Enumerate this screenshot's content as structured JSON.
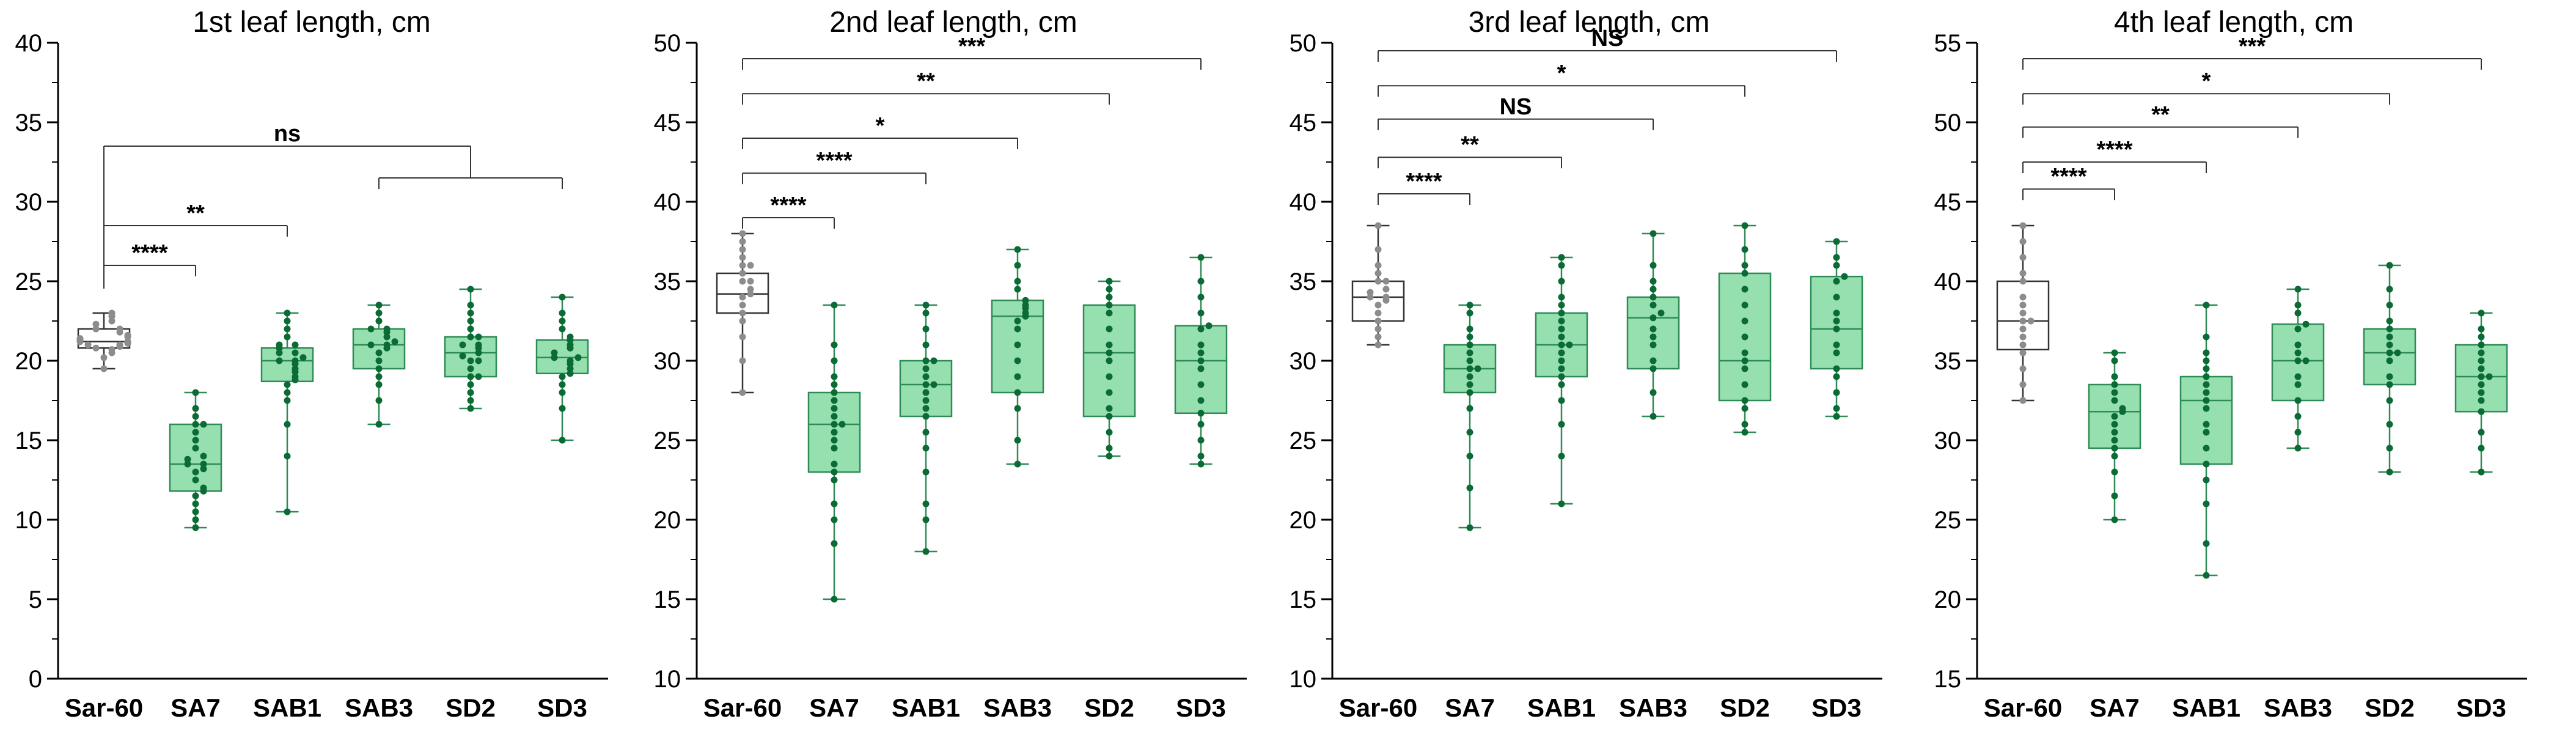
{
  "colors": {
    "control_box": "#ffffff",
    "control_edge": "#333333",
    "control_point": "#8c8c8c",
    "treat_box": "#96e0b0",
    "treat_edge": "#2e8b57",
    "treat_point": "#0b6b35",
    "axis": "#000000"
  },
  "chart_data": [
    {
      "type": "box",
      "title": "1st leaf length, cm",
      "categories": [
        "Sar-60",
        "SA7",
        "SAB1",
        "SAB3",
        "SD2",
        "SD3"
      ],
      "ylim": [
        0,
        40
      ],
      "yticks": [
        0,
        5,
        10,
        15,
        20,
        25,
        30,
        35,
        40
      ],
      "boxes": [
        {
          "min": 19.5,
          "q1": 20.8,
          "median": 21.2,
          "q3": 22.0,
          "max": 23.0,
          "points": [
            19.5,
            20.2,
            20.5,
            20.7,
            20.8,
            20.9,
            21.0,
            21.0,
            21.1,
            21.2,
            21.2,
            21.3,
            21.4,
            21.5,
            21.6,
            21.8,
            22.0,
            22.0,
            22.3,
            22.5,
            22.8,
            23.0
          ]
        },
        {
          "min": 9.5,
          "q1": 11.8,
          "median": 13.5,
          "q3": 16.0,
          "max": 18.0,
          "points": [
            9.5,
            10.0,
            10.5,
            11.0,
            11.5,
            11.8,
            12.0,
            12.5,
            13.0,
            13.2,
            13.5,
            13.5,
            13.8,
            14.0,
            14.5,
            15.0,
            15.5,
            16.0,
            16.0,
            16.5,
            17.0,
            18.0
          ]
        },
        {
          "min": 10.5,
          "q1": 18.7,
          "median": 20.0,
          "q3": 20.8,
          "max": 23.0,
          "points": [
            10.5,
            14.0,
            16.0,
            17.5,
            18.0,
            18.5,
            18.8,
            19.0,
            19.3,
            19.5,
            19.8,
            20.0,
            20.0,
            20.2,
            20.5,
            20.5,
            20.8,
            21.0,
            21.0,
            21.5,
            22.0,
            22.5,
            23.0
          ]
        },
        {
          "min": 16.0,
          "q1": 19.5,
          "median": 21.0,
          "q3": 22.0,
          "max": 23.5,
          "points": [
            16.0,
            17.5,
            18.5,
            19.0,
            19.5,
            20.0,
            20.5,
            20.8,
            21.0,
            21.0,
            21.2,
            21.5,
            21.8,
            22.0,
            22.0,
            22.5,
            23.0,
            23.5
          ]
        },
        {
          "min": 17.0,
          "q1": 19.0,
          "median": 20.5,
          "q3": 21.5,
          "max": 24.5,
          "points": [
            17.0,
            17.5,
            18.0,
            18.5,
            19.0,
            19.0,
            19.5,
            20.0,
            20.0,
            20.3,
            20.5,
            20.8,
            21.0,
            21.0,
            21.5,
            21.5,
            22.0,
            22.5,
            23.0,
            23.5,
            24.5
          ]
        },
        {
          "min": 15.0,
          "q1": 19.2,
          "median": 20.2,
          "q3": 21.3,
          "max": 24.0,
          "points": [
            15.0,
            17.0,
            18.0,
            18.5,
            19.0,
            19.2,
            19.5,
            19.8,
            20.0,
            20.2,
            20.2,
            20.5,
            20.8,
            21.0,
            21.3,
            21.5,
            22.0,
            22.5,
            23.0,
            24.0
          ]
        }
      ],
      "brackets": [
        {
          "from": 0,
          "to": 1,
          "y": 26.0,
          "label": "****"
        },
        {
          "from": 0,
          "to": 2,
          "y": 28.5,
          "label": "**"
        },
        {
          "from": 0,
          "to": 3.5,
          "y": 33.5,
          "label": "ns",
          "bold": false,
          "group": [
            3,
            5
          ],
          "group_y": 31.5
        }
      ]
    },
    {
      "type": "box",
      "title": "2nd leaf length, cm",
      "categories": [
        "Sar-60",
        "SA7",
        "SAB1",
        "SAB3",
        "SD2",
        "SD3"
      ],
      "ylim": [
        10,
        50
      ],
      "yticks": [
        10,
        15,
        20,
        25,
        30,
        35,
        40,
        45,
        50
      ],
      "boxes": [
        {
          "min": 28.0,
          "q1": 33.0,
          "median": 34.2,
          "q3": 35.5,
          "max": 38.0,
          "points": [
            28.0,
            30.0,
            31.5,
            32.5,
            33.0,
            33.5,
            34.0,
            34.2,
            34.5,
            35.0,
            35.0,
            35.5,
            36.0,
            36.0,
            36.5,
            37.0,
            37.5,
            38.0
          ]
        },
        {
          "min": 15.0,
          "q1": 23.0,
          "median": 26.0,
          "q3": 28.0,
          "max": 33.5,
          "points": [
            15.0,
            18.5,
            20.0,
            21.0,
            22.5,
            23.0,
            23.5,
            24.5,
            25.0,
            25.5,
            26.0,
            26.0,
            26.5,
            27.0,
            27.5,
            28.0,
            28.5,
            29.0,
            30.0,
            31.0,
            33.5
          ]
        },
        {
          "min": 18.0,
          "q1": 26.5,
          "median": 28.5,
          "q3": 30.0,
          "max": 33.5,
          "points": [
            18.0,
            20.0,
            21.0,
            23.0,
            24.5,
            25.5,
            26.5,
            27.0,
            27.5,
            28.0,
            28.5,
            28.5,
            29.0,
            29.5,
            30.0,
            30.0,
            31.0,
            32.0,
            33.0,
            33.5
          ]
        },
        {
          "min": 23.5,
          "q1": 28.0,
          "median": 32.8,
          "q3": 33.8,
          "max": 37.0,
          "points": [
            23.5,
            25.0,
            27.0,
            28.0,
            29.0,
            30.0,
            31.0,
            32.0,
            32.5,
            32.8,
            33.0,
            33.3,
            33.5,
            33.8,
            34.5,
            35.0,
            36.0,
            37.0
          ]
        },
        {
          "min": 24.0,
          "q1": 26.5,
          "median": 30.5,
          "q3": 33.5,
          "max": 35.0,
          "points": [
            24.0,
            24.5,
            25.5,
            26.5,
            27.0,
            28.0,
            29.0,
            30.0,
            30.5,
            31.0,
            32.0,
            33.0,
            33.5,
            34.0,
            34.5,
            35.0
          ]
        },
        {
          "min": 23.5,
          "q1": 26.7,
          "median": 30.0,
          "q3": 32.2,
          "max": 36.5,
          "points": [
            23.5,
            24.0,
            25.0,
            26.0,
            26.7,
            27.5,
            28.5,
            29.5,
            30.0,
            30.5,
            31.0,
            32.0,
            32.2,
            33.0,
            34.0,
            35.0,
            36.5
          ]
        }
      ],
      "brackets": [
        {
          "from": 0,
          "to": 1,
          "y": 39.0,
          "label": "****"
        },
        {
          "from": 0,
          "to": 2,
          "y": 41.8,
          "label": "****"
        },
        {
          "from": 0,
          "to": 3,
          "y": 44.0,
          "label": "*"
        },
        {
          "from": 0,
          "to": 4,
          "y": 46.8,
          "label": "**"
        },
        {
          "from": 0,
          "to": 5,
          "y": 49.0,
          "label": "***"
        }
      ]
    },
    {
      "type": "box",
      "title": "3rd leaf length, cm",
      "categories": [
        "Sar-60",
        "SA7",
        "SAB1",
        "SAB3",
        "SD2",
        "SD3"
      ],
      "ylim": [
        10,
        50
      ],
      "yticks": [
        10,
        15,
        20,
        25,
        30,
        35,
        40,
        45,
        50
      ],
      "boxes": [
        {
          "min": 31.0,
          "q1": 32.5,
          "median": 34.0,
          "q3": 35.0,
          "max": 38.5,
          "points": [
            31.0,
            31.5,
            32.0,
            32.5,
            33.0,
            33.5,
            33.8,
            34.0,
            34.0,
            34.3,
            34.5,
            35.0,
            35.0,
            35.5,
            36.0,
            37.0,
            38.5
          ]
        },
        {
          "min": 19.5,
          "q1": 28.0,
          "median": 29.5,
          "q3": 31.0,
          "max": 33.5,
          "points": [
            19.5,
            22.0,
            24.0,
            25.5,
            27.0,
            28.0,
            28.5,
            29.0,
            29.5,
            29.5,
            30.0,
            30.5,
            31.0,
            31.5,
            32.0,
            33.0,
            33.5
          ]
        },
        {
          "min": 21.0,
          "q1": 29.0,
          "median": 31.0,
          "q3": 33.0,
          "max": 36.5,
          "points": [
            21.0,
            24.0,
            26.0,
            27.5,
            28.5,
            29.0,
            29.5,
            30.0,
            30.5,
            31.0,
            31.0,
            31.5,
            32.0,
            32.5,
            33.0,
            33.5,
            34.0,
            35.0,
            36.0,
            36.5
          ]
        },
        {
          "min": 26.5,
          "q1": 29.5,
          "median": 32.7,
          "q3": 34.0,
          "max": 38.0,
          "points": [
            26.5,
            28.0,
            29.5,
            30.0,
            31.0,
            31.5,
            32.0,
            32.7,
            33.0,
            33.5,
            34.0,
            34.5,
            35.0,
            36.0,
            38.0
          ]
        },
        {
          "min": 25.5,
          "q1": 27.5,
          "median": 30.0,
          "q3": 35.5,
          "max": 38.5,
          "points": [
            25.5,
            26.0,
            27.0,
            27.5,
            28.5,
            29.5,
            30.0,
            30.5,
            31.5,
            32.5,
            33.5,
            34.5,
            35.5,
            36.0,
            37.0,
            38.5
          ]
        },
        {
          "min": 26.5,
          "q1": 29.5,
          "median": 32.0,
          "q3": 35.3,
          "max": 37.5,
          "points": [
            26.5,
            27.0,
            28.0,
            29.0,
            29.5,
            30.5,
            31.0,
            32.0,
            32.5,
            33.0,
            34.0,
            35.0,
            35.3,
            36.0,
            36.5,
            37.5
          ]
        }
      ],
      "brackets": [
        {
          "from": 0,
          "to": 1,
          "y": 40.5,
          "label": "****"
        },
        {
          "from": 0,
          "to": 2,
          "y": 42.8,
          "label": "**"
        },
        {
          "from": 0,
          "to": 3,
          "y": 45.2,
          "label": "NS"
        },
        {
          "from": 0,
          "to": 4,
          "y": 47.3,
          "label": "*"
        },
        {
          "from": 0,
          "to": 5,
          "y": 49.5,
          "label": "NS"
        }
      ]
    },
    {
      "type": "box",
      "title": "4th leaf length, cm",
      "categories": [
        "Sar-60",
        "SA7",
        "SAB1",
        "SAB3",
        "SD2",
        "SD3"
      ],
      "ylim": [
        15,
        55
      ],
      "yticks": [
        15,
        20,
        25,
        30,
        35,
        40,
        45,
        50,
        55
      ],
      "boxes": [
        {
          "min": 32.5,
          "q1": 35.7,
          "median": 37.5,
          "q3": 40.0,
          "max": 43.5,
          "points": [
            32.5,
            33.5,
            34.5,
            35.5,
            36.0,
            36.5,
            37.0,
            37.5,
            37.5,
            38.0,
            38.5,
            39.0,
            40.0,
            40.5,
            41.5,
            42.5,
            43.5
          ]
        },
        {
          "min": 25.0,
          "q1": 29.5,
          "median": 31.8,
          "q3": 33.5,
          "max": 35.5,
          "points": [
            25.0,
            26.5,
            28.0,
            29.0,
            29.5,
            30.0,
            30.5,
            31.0,
            31.5,
            31.8,
            32.0,
            32.5,
            33.0,
            33.5,
            34.0,
            35.0,
            35.5
          ]
        },
        {
          "min": 21.5,
          "q1": 28.5,
          "median": 32.5,
          "q3": 34.0,
          "max": 38.5,
          "points": [
            21.5,
            23.5,
            26.0,
            27.5,
            28.5,
            29.5,
            30.5,
            31.0,
            32.0,
            32.5,
            33.0,
            33.5,
            34.0,
            34.5,
            35.0,
            35.5,
            36.5,
            38.5
          ]
        },
        {
          "min": 29.5,
          "q1": 32.5,
          "median": 35.0,
          "q3": 37.3,
          "max": 39.5,
          "points": [
            29.5,
            30.5,
            31.5,
            32.5,
            33.5,
            34.0,
            35.0,
            35.0,
            35.5,
            36.0,
            37.0,
            37.3,
            38.0,
            38.5,
            39.5
          ]
        },
        {
          "min": 28.0,
          "q1": 33.5,
          "median": 35.5,
          "q3": 37.0,
          "max": 41.0,
          "points": [
            28.0,
            29.5,
            31.0,
            32.5,
            33.5,
            34.0,
            35.0,
            35.5,
            35.5,
            36.0,
            36.5,
            37.0,
            37.5,
            38.5,
            39.5,
            41.0
          ]
        },
        {
          "min": 28.0,
          "q1": 31.8,
          "median": 34.0,
          "q3": 36.0,
          "max": 38.0,
          "points": [
            28.0,
            29.5,
            30.5,
            31.8,
            32.5,
            33.0,
            33.5,
            34.0,
            34.0,
            34.5,
            35.0,
            35.5,
            36.0,
            36.5,
            37.0,
            38.0
          ]
        }
      ],
      "brackets": [
        {
          "from": 0,
          "to": 1,
          "y": 45.8,
          "label": "****"
        },
        {
          "from": 0,
          "to": 2,
          "y": 47.5,
          "label": "****"
        },
        {
          "from": 0,
          "to": 3,
          "y": 49.7,
          "label": "**"
        },
        {
          "from": 0,
          "to": 4,
          "y": 51.8,
          "label": "*"
        },
        {
          "from": 0,
          "to": 5,
          "y": 54.0,
          "label": "***"
        }
      ]
    }
  ]
}
